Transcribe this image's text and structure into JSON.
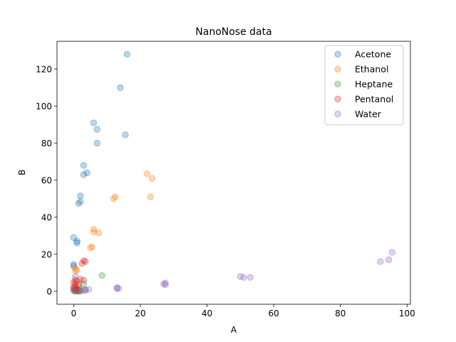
{
  "chart_data": {
    "type": "scatter",
    "title": "NanoNose data",
    "xlabel": "A",
    "ylabel": "B",
    "xlim": [
      -5,
      101
    ],
    "ylim": [
      -7,
      135
    ],
    "xticks": [
      0,
      20,
      40,
      60,
      80,
      100
    ],
    "yticks": [
      0,
      20,
      40,
      60,
      80,
      100,
      120
    ],
    "grid": false,
    "legend_position": "top-right",
    "marker_alpha": 0.3,
    "series": [
      {
        "name": "Acetone",
        "color": "#1f77b4",
        "points": [
          [
            16.0,
            128.0
          ],
          [
            14.0,
            110.0
          ],
          [
            6.0,
            91.0
          ],
          [
            7.0,
            87.5
          ],
          [
            15.5,
            84.5
          ],
          [
            7.0,
            80.0
          ],
          [
            3.0,
            68.0
          ],
          [
            4.0,
            64.0
          ],
          [
            3.0,
            63.0
          ],
          [
            2.0,
            51.5
          ],
          [
            2.0,
            48.5
          ],
          [
            1.5,
            47.5
          ],
          [
            0.0,
            29.0
          ],
          [
            1.0,
            27.0
          ],
          [
            1.0,
            26.0
          ],
          [
            0.0,
            14.5
          ],
          [
            0.0,
            13.5
          ]
        ]
      },
      {
        "name": "Ethanol",
        "color": "#ff7f0e",
        "points": [
          [
            22.0,
            63.5
          ],
          [
            23.5,
            61.0
          ],
          [
            12.5,
            51.0
          ],
          [
            12.0,
            50.0
          ],
          [
            23.0,
            51.0
          ],
          [
            6.0,
            33.5
          ],
          [
            6.0,
            32.0
          ],
          [
            7.5,
            31.5
          ],
          [
            5.5,
            24.0
          ],
          [
            5.0,
            23.5
          ],
          [
            0.5,
            12.5
          ],
          [
            1.0,
            11.5
          ],
          [
            0.5,
            11.0
          ]
        ]
      },
      {
        "name": "Heptane",
        "color": "#2ca02c",
        "points": [
          [
            8.5,
            8.5
          ],
          [
            3.0,
            4.0
          ],
          [
            1.5,
            2.0
          ],
          [
            0.5,
            1.0
          ],
          [
            0.0,
            0.5
          ],
          [
            1.0,
            0.0
          ],
          [
            2.0,
            0.5
          ],
          [
            3.5,
            0.5
          ],
          [
            0.5,
            0.0
          ],
          [
            1.5,
            0.0
          ]
        ]
      },
      {
        "name": "Pentanol",
        "color": "#d62728",
        "points": [
          [
            3.0,
            16.5
          ],
          [
            3.5,
            16.0
          ],
          [
            2.5,
            15.0
          ],
          [
            2.0,
            6.5
          ],
          [
            3.0,
            6.0
          ],
          [
            0.5,
            6.0
          ],
          [
            1.0,
            5.5
          ],
          [
            0.0,
            5.0
          ],
          [
            0.5,
            4.0
          ],
          [
            1.5,
            3.5
          ],
          [
            0.0,
            2.5
          ],
          [
            0.5,
            2.0
          ],
          [
            0.0,
            1.5
          ],
          [
            1.0,
            1.0
          ],
          [
            0.5,
            0.5
          ],
          [
            1.5,
            0.5
          ]
        ]
      },
      {
        "name": "Water",
        "color": "#9467bd",
        "points": [
          [
            95.5,
            21.0
          ],
          [
            92.0,
            16.0
          ],
          [
            94.5,
            17.0
          ],
          [
            50.0,
            8.0
          ],
          [
            51.0,
            7.5
          ],
          [
            53.0,
            7.5
          ],
          [
            27.5,
            4.5
          ],
          [
            27.0,
            4.0
          ],
          [
            27.5,
            3.5
          ],
          [
            13.0,
            2.0
          ],
          [
            13.5,
            1.5
          ],
          [
            13.0,
            1.5
          ],
          [
            3.5,
            1.0
          ],
          [
            4.5,
            1.0
          ],
          [
            3.0,
            0.5
          ],
          [
            0.5,
            8.0
          ],
          [
            0.0,
            0.5
          ],
          [
            2.0,
            0.0
          ]
        ]
      }
    ]
  }
}
